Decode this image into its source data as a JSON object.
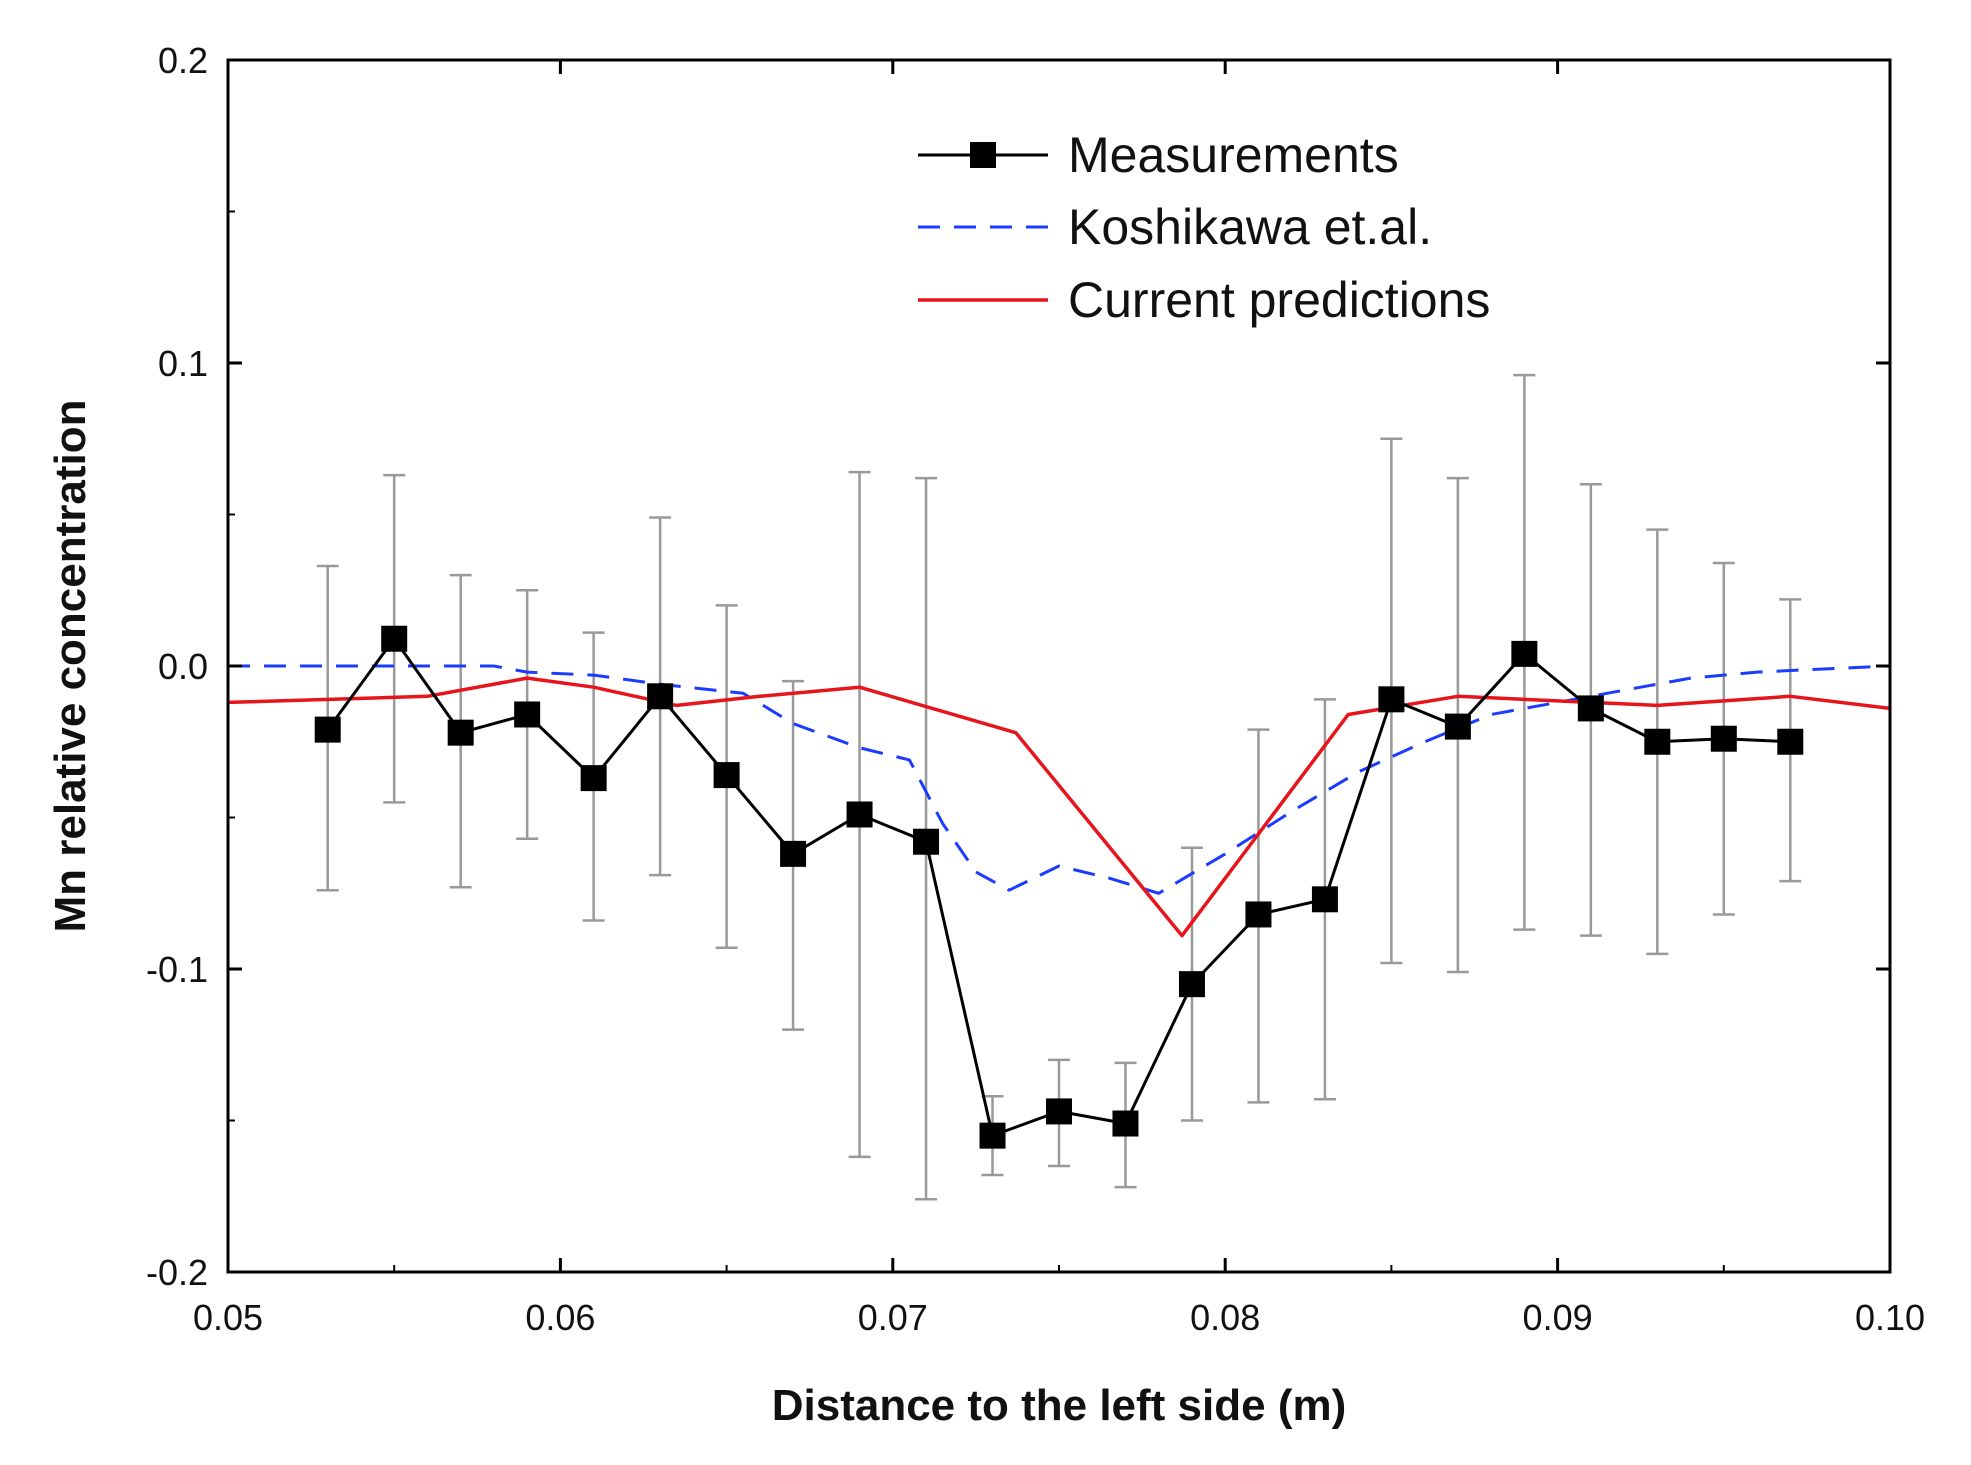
{
  "chart_data": {
    "type": "line",
    "title": "",
    "xlabel": "Distance to the left side (m)",
    "ylabel": "Mn relative concentration",
    "xlim": [
      0.05,
      0.1
    ],
    "ylim": [
      -0.2,
      0.2
    ],
    "xticks": [
      0.05,
      0.06,
      0.07,
      0.08,
      0.09,
      0.1
    ],
    "xtick_labels": [
      "0.05",
      "0.06",
      "0.07",
      "0.08",
      "0.09",
      "0.10"
    ],
    "yticks": [
      -0.2,
      -0.1,
      0.0,
      0.1,
      0.2
    ],
    "ytick_labels": [
      "-0.2",
      "-0.1",
      "0.0",
      "0.1",
      "0.2"
    ],
    "legend_position": "top-right",
    "series": [
      {
        "name": "Measurements",
        "style": "line-square-markers",
        "color": "#000000",
        "x": [
          0.053,
          0.055,
          0.057,
          0.059,
          0.061,
          0.063,
          0.065,
          0.067,
          0.069,
          0.071,
          0.073,
          0.075,
          0.077,
          0.079,
          0.081,
          0.083,
          0.085,
          0.087,
          0.089,
          0.091,
          0.093,
          0.095,
          0.097
        ],
        "y": [
          -0.021,
          0.009,
          -0.022,
          -0.016,
          -0.037,
          -0.01,
          -0.036,
          -0.062,
          -0.049,
          -0.058,
          -0.155,
          -0.147,
          -0.151,
          -0.105,
          -0.082,
          -0.077,
          -0.011,
          -0.02,
          0.004,
          -0.014,
          -0.025,
          -0.024,
          -0.025
        ],
        "error_upper": [
          0.033,
          0.063,
          0.03,
          0.025,
          0.011,
          0.049,
          0.02,
          -0.005,
          0.064,
          0.062,
          -0.142,
          -0.13,
          -0.131,
          -0.06,
          -0.021,
          -0.011,
          0.075,
          0.062,
          0.096,
          0.06,
          0.045,
          0.034,
          0.022
        ],
        "error_lower": [
          -0.074,
          -0.045,
          -0.073,
          -0.057,
          -0.084,
          -0.069,
          -0.093,
          -0.12,
          -0.162,
          -0.176,
          -0.168,
          -0.165,
          -0.172,
          -0.15,
          -0.144,
          -0.143,
          -0.098,
          -0.101,
          -0.087,
          -0.089,
          -0.095,
          -0.082,
          -0.071
        ],
        "error_color": "#999999"
      },
      {
        "name": "Koshikawa et.al.",
        "style": "dashed",
        "color": "#1a3cff",
        "x": [
          0.05,
          0.055,
          0.058,
          0.059,
          0.061,
          0.063,
          0.0655,
          0.067,
          0.069,
          0.0705,
          0.0715,
          0.0725,
          0.0735,
          0.075,
          0.0765,
          0.078,
          0.08,
          0.082,
          0.084,
          0.086,
          0.088,
          0.09,
          0.092,
          0.094,
          0.096,
          0.098,
          0.1
        ],
        "y": [
          0.0,
          0.0,
          0.0,
          -0.002,
          -0.003,
          -0.006,
          -0.009,
          -0.019,
          -0.027,
          -0.031,
          -0.052,
          -0.068,
          -0.074,
          -0.066,
          -0.07,
          -0.075,
          -0.062,
          -0.048,
          -0.035,
          -0.025,
          -0.016,
          -0.012,
          -0.008,
          -0.004,
          -0.002,
          -0.001,
          0.0
        ],
        "error_color": "#999999"
      },
      {
        "name": "Current predictions",
        "style": "solid",
        "color": "#e8141b",
        "x": [
          0.05,
          0.056,
          0.059,
          0.061,
          0.0635,
          0.066,
          0.069,
          0.0737,
          0.0787,
          0.0837,
          0.087,
          0.091,
          0.093,
          0.097,
          0.1
        ],
        "y": [
          -0.012,
          -0.01,
          -0.004,
          -0.007,
          -0.013,
          -0.01,
          -0.007,
          -0.022,
          -0.089,
          -0.016,
          -0.01,
          -0.012,
          -0.013,
          -0.01,
          -0.014
        ],
        "error_color": "#999999"
      }
    ]
  }
}
